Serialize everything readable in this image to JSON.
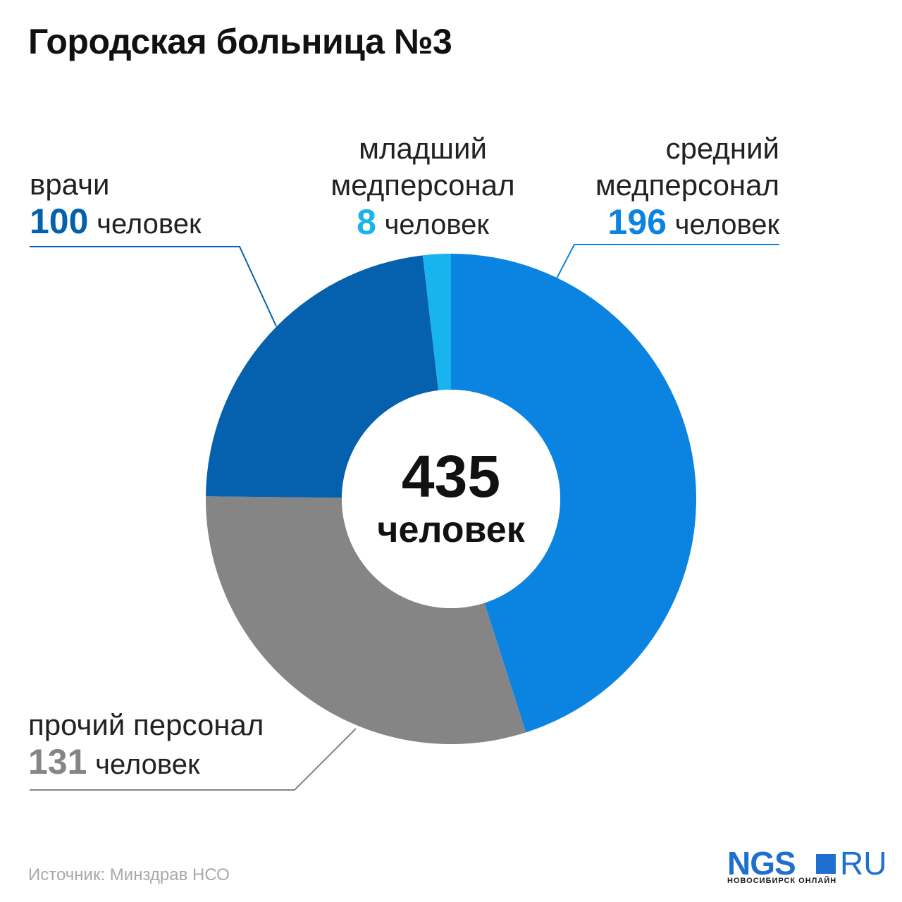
{
  "header": {
    "title": "Городская больница №3"
  },
  "chart_data": {
    "type": "pie",
    "title": "Городская больница №3",
    "unit": "человек",
    "total": {
      "value": "435",
      "label": "человек"
    },
    "slices": [
      {
        "name": "средний медперсонал",
        "value": 196,
        "color": "#0a84e0"
      },
      {
        "name": "прочий персонал",
        "value": 131,
        "color": "#858585"
      },
      {
        "name": "врачи",
        "value": 100,
        "color": "#0560ad"
      },
      {
        "name": "младший медперсонал",
        "value": 8,
        "color": "#18b4ef"
      }
    ]
  },
  "labels": {
    "doctors": {
      "line1": "врачи",
      "value": "100",
      "unit": "человек",
      "color": "#0560ad"
    },
    "junior": {
      "line1": "младший",
      "line2": "медперсонал",
      "value": "8",
      "unit": "человек",
      "color": "#18b4ef"
    },
    "middle": {
      "line1": "средний",
      "line2": "медперсонал",
      "value": "196",
      "unit": "человек",
      "color": "#0a84e0"
    },
    "other": {
      "line1": "прочий персонал",
      "value": "131",
      "unit": "человек",
      "color": "#858585"
    }
  },
  "footer": {
    "source": "Источник: Минздрав НСО",
    "logo_main": "NGS",
    "logo_suffix": "RU",
    "logo_sub": "НОВОСИБИРСК ОНЛАЙН"
  }
}
